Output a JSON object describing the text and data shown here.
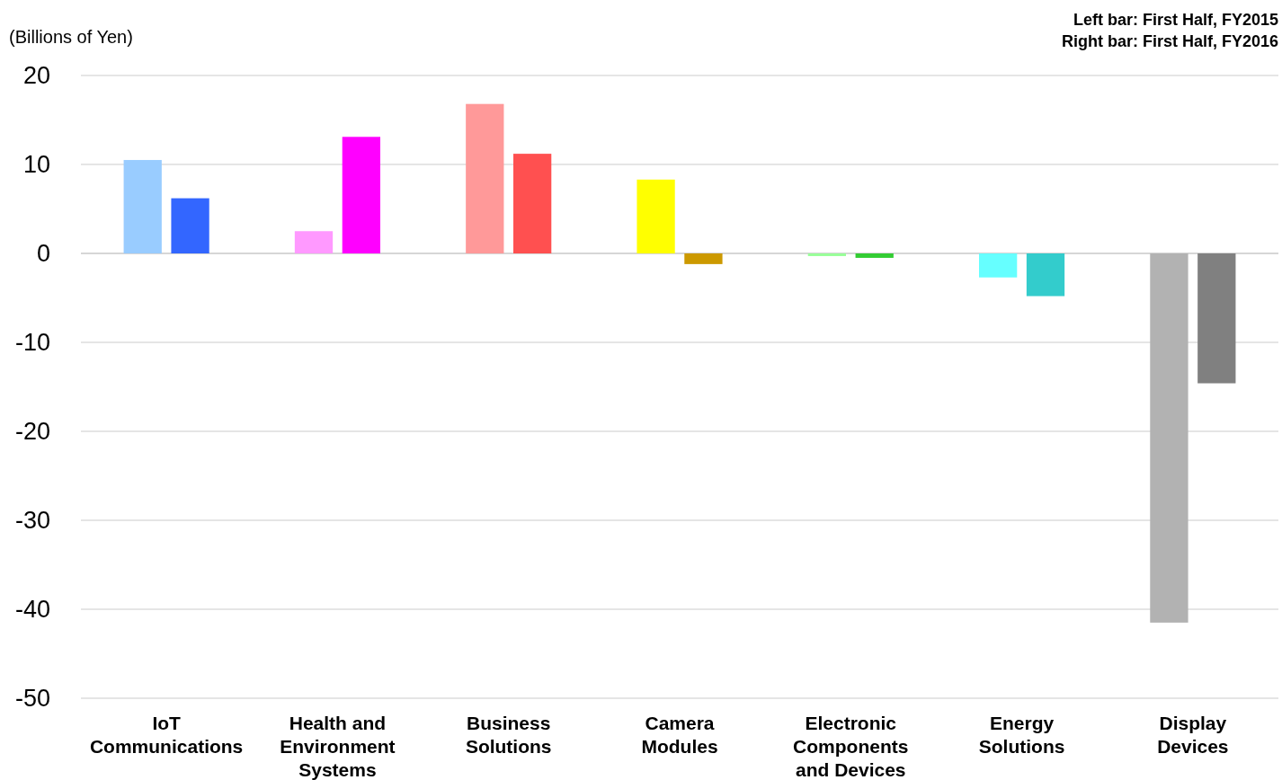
{
  "chart_data": {
    "type": "bar",
    "ylabel": "(Billions of Yen)",
    "annotations": [
      "Left bar: First Half, FY2015",
      "Right bar: First Half, FY2016"
    ],
    "categories": [
      "IoT Communications",
      "Health and Environment Systems",
      "Business Solutions",
      "Camera Modules",
      "Electronic Components and Devices",
      "Energy Solutions",
      "Display Devices"
    ],
    "series": [
      {
        "colors": [
          "#99ccff",
          "#ff99ff",
          "#ff9999",
          "#ffff00",
          "#99ff99",
          "#66ffff",
          "#b2b2b2"
        ],
        "values": [
          10.5,
          2.5,
          16.8,
          8.3,
          -0.3,
          -2.7,
          -41.5
        ]
      },
      {
        "colors": [
          "#3366ff",
          "#ff00ff",
          "#ff5050",
          "#cc9900",
          "#33cc33",
          "#33cccc",
          "#808080"
        ],
        "values": [
          6.2,
          13.1,
          11.2,
          -1.2,
          -0.5,
          -4.8,
          -14.6
        ]
      }
    ],
    "ylim": [
      -50,
      20
    ],
    "yticks": [
      -50,
      -40,
      -30,
      -20,
      -10,
      0,
      10,
      20
    ],
    "grid": "y"
  }
}
